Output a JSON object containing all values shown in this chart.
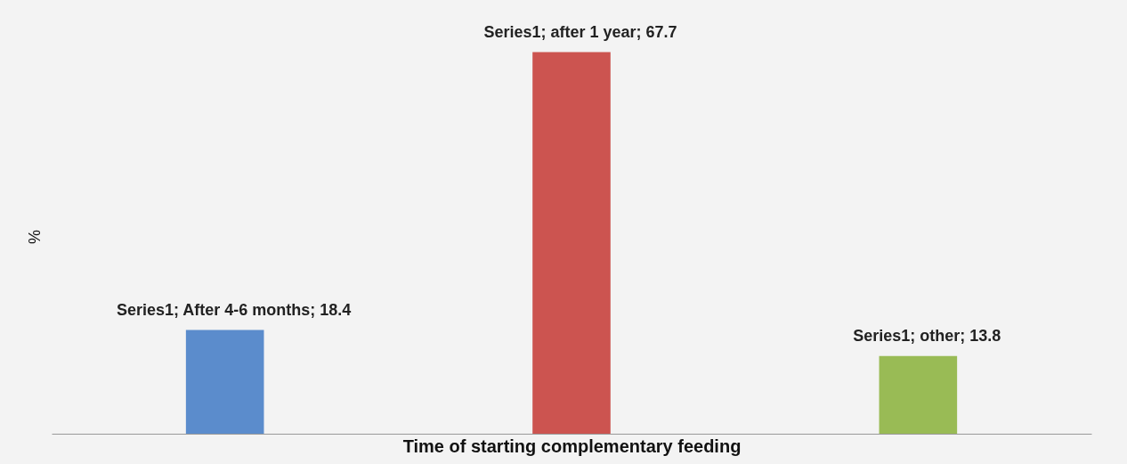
{
  "chart_data": {
    "type": "bar",
    "xlabel": "Time of starting complementary feeding",
    "ylabel": "%",
    "categories": [
      null,
      null,
      null
    ],
    "values": [
      18.4,
      67.7,
      13.8
    ],
    "colors": [
      "#5b8ccc",
      "#cc5450",
      "#99bb55"
    ],
    "value_labels": [
      "Series1; After 4-6 months; 18.4",
      "Series1; after 1 year; 67.7",
      "Series1; other; 13.8"
    ],
    "tick_labels": false
  }
}
